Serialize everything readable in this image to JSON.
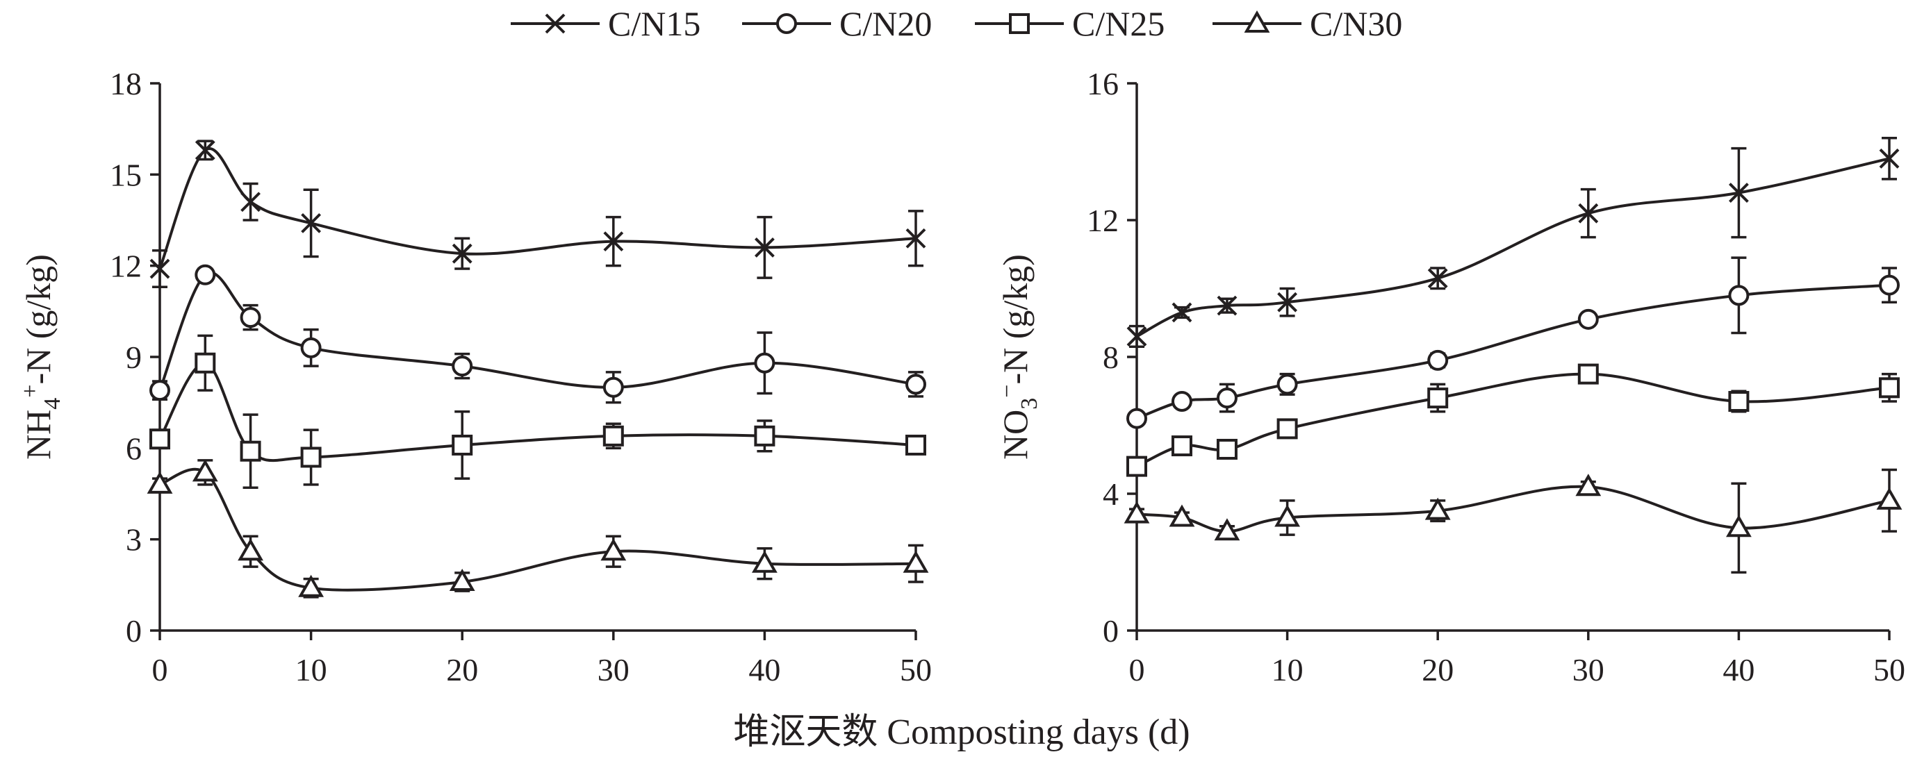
{
  "legend": {
    "position": "top-center",
    "items": [
      {
        "label": "C/N15",
        "marker": "cross"
      },
      {
        "label": "C/N20",
        "marker": "circle"
      },
      {
        "label": "C/N25",
        "marker": "square"
      },
      {
        "label": "C/N30",
        "marker": "triangle"
      }
    ]
  },
  "shared_xlabel": "堆沤天数 Composting days (d)",
  "colors": {
    "ink": "#231f20",
    "marker_fill": "#ffffff"
  },
  "chart_data": [
    {
      "type": "line",
      "ylabel_parts": [
        "NH",
        "4",
        "+",
        "-N (g/kg)"
      ],
      "xlim": [
        0,
        50
      ],
      "ylim": [
        0,
        18
      ],
      "xticks": [
        0,
        10,
        20,
        30,
        40,
        50
      ],
      "yticks": [
        0,
        3,
        6,
        9,
        12,
        15,
        18
      ],
      "grid": false,
      "x": [
        0,
        3,
        6,
        10,
        20,
        30,
        40,
        50
      ],
      "series": [
        {
          "name": "C/N15",
          "marker": "cross",
          "values": [
            11.9,
            15.8,
            14.1,
            13.4,
            12.4,
            12.8,
            12.6,
            12.9
          ],
          "errors": [
            0.6,
            0.3,
            0.6,
            1.1,
            0.5,
            0.8,
            1.0,
            0.9
          ]
        },
        {
          "name": "C/N20",
          "marker": "circle",
          "values": [
            7.9,
            11.7,
            10.3,
            9.3,
            8.7,
            8.0,
            8.8,
            8.1
          ],
          "errors": [
            0.3,
            0.2,
            0.4,
            0.6,
            0.4,
            0.5,
            1.0,
            0.4
          ]
        },
        {
          "name": "C/N25",
          "marker": "square",
          "values": [
            6.3,
            8.8,
            5.9,
            5.7,
            6.1,
            6.4,
            6.4,
            6.1
          ],
          "errors": [
            0.3,
            0.9,
            1.2,
            0.9,
            1.1,
            0.4,
            0.5,
            0.2
          ]
        },
        {
          "name": "C/N30",
          "marker": "triangle",
          "values": [
            4.8,
            5.2,
            2.6,
            1.4,
            1.6,
            2.6,
            2.2,
            2.2
          ],
          "errors": [
            0.2,
            0.4,
            0.5,
            0.3,
            0.3,
            0.5,
            0.5,
            0.6
          ]
        }
      ]
    },
    {
      "type": "line",
      "ylabel_parts": [
        "NO",
        "3",
        "−",
        "-N (g/kg)"
      ],
      "xlim": [
        0,
        50
      ],
      "ylim": [
        0,
        16
      ],
      "xticks": [
        0,
        10,
        20,
        30,
        40,
        50
      ],
      "yticks": [
        0,
        4,
        8,
        12,
        16
      ],
      "grid": false,
      "x": [
        0,
        3,
        6,
        10,
        20,
        30,
        40,
        50
      ],
      "series": [
        {
          "name": "C/N15",
          "marker": "cross",
          "values": [
            8.6,
            9.3,
            9.5,
            9.6,
            10.3,
            12.2,
            12.8,
            13.8
          ],
          "errors": [
            0.3,
            0.15,
            0.2,
            0.4,
            0.3,
            0.7,
            1.3,
            0.6
          ]
        },
        {
          "name": "C/N20",
          "marker": "circle",
          "values": [
            6.2,
            6.7,
            6.8,
            7.2,
            7.9,
            9.1,
            9.8,
            10.1
          ],
          "errors": [
            0.15,
            0.15,
            0.4,
            0.3,
            0.2,
            0.15,
            1.1,
            0.5
          ]
        },
        {
          "name": "C/N25",
          "marker": "square",
          "values": [
            4.8,
            5.4,
            5.3,
            5.9,
            6.8,
            7.5,
            6.7,
            7.1
          ],
          "errors": [
            0.15,
            0.15,
            0.15,
            0.15,
            0.4,
            0.2,
            0.3,
            0.4
          ]
        },
        {
          "name": "C/N30",
          "marker": "triangle",
          "values": [
            3.4,
            3.3,
            2.9,
            3.3,
            3.5,
            4.2,
            3.0,
            3.8
          ],
          "errors": [
            0.15,
            0.15,
            0.15,
            0.5,
            0.3,
            0.15,
            1.3,
            0.9
          ]
        }
      ]
    }
  ]
}
